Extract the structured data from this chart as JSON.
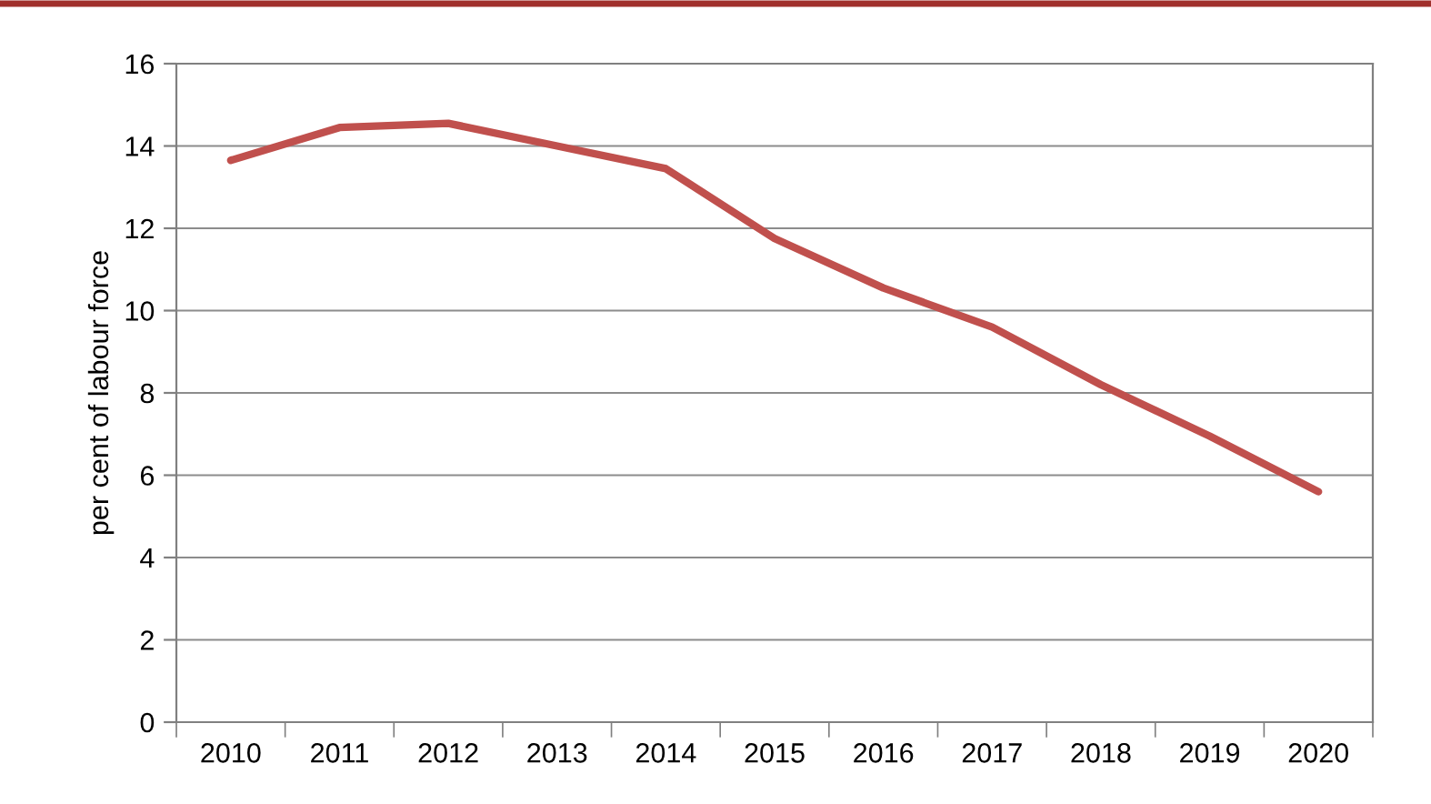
{
  "chart_data": {
    "type": "line",
    "ylabel": "per cent of labour force",
    "categories": [
      "2010",
      "2011",
      "2012",
      "2013",
      "2014",
      "2015",
      "2016",
      "2017",
      "2018",
      "2019",
      "2020"
    ],
    "series": [
      {
        "color": "#c0504d",
        "values": [
          13.65,
          14.45,
          14.55,
          14.0,
          13.45,
          11.75,
          10.55,
          9.6,
          8.2,
          6.95,
          5.6
        ]
      }
    ],
    "ylim": [
      0,
      16
    ],
    "yticks": [
      0,
      2,
      4,
      6,
      8,
      10,
      12,
      14,
      16
    ],
    "grid": "y",
    "legend": false,
    "marker": "none",
    "line_style": "solid"
  }
}
